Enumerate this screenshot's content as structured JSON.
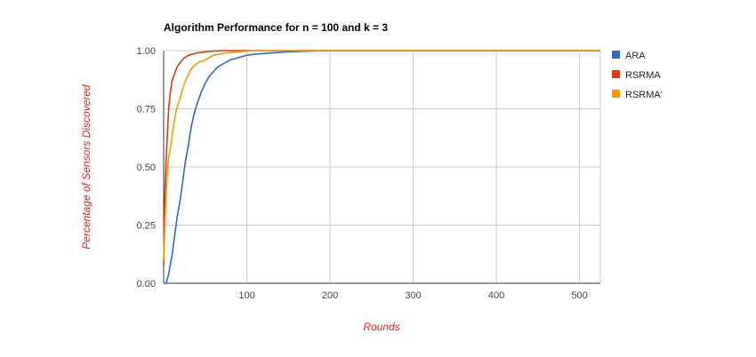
{
  "chart_data": {
    "type": "line",
    "title": "Algorithm Performance for n = 100 and k = 3",
    "xlabel": "Rounds",
    "ylabel": "Percentage of Sensors Discovered",
    "xlim": [
      0,
      525
    ],
    "ylim": [
      0,
      1
    ],
    "x_ticks": [
      "100",
      "200",
      "300",
      "400",
      "500"
    ],
    "y_ticks": [
      "0.00",
      "0.25",
      "0.50",
      "0.75",
      "1.00"
    ],
    "grid": true,
    "legend_position": "right",
    "series": [
      {
        "name": "ARA",
        "color": "#3366cc",
        "points": [
          [
            0,
            0
          ],
          [
            3,
            0
          ],
          [
            6,
            0.04
          ],
          [
            10,
            0.12
          ],
          [
            13,
            0.2
          ],
          [
            16,
            0.28
          ],
          [
            20,
            0.36
          ],
          [
            23,
            0.44
          ],
          [
            26,
            0.52
          ],
          [
            30,
            0.6
          ],
          [
            33,
            0.67
          ],
          [
            36,
            0.72
          ],
          [
            40,
            0.77
          ],
          [
            45,
            0.82
          ],
          [
            50,
            0.86
          ],
          [
            55,
            0.89
          ],
          [
            60,
            0.91
          ],
          [
            65,
            0.93
          ],
          [
            70,
            0.94
          ],
          [
            75,
            0.95
          ],
          [
            80,
            0.96
          ],
          [
            90,
            0.97
          ],
          [
            100,
            0.98
          ],
          [
            110,
            0.985
          ],
          [
            130,
            0.99
          ],
          [
            150,
            0.995
          ],
          [
            180,
            0.998
          ],
          [
            205,
            1.0
          ],
          [
            525,
            1.0
          ]
        ]
      },
      {
        "name": "RSRMA",
        "color": "#dc3912",
        "points": [
          [
            0,
            0.08
          ],
          [
            1,
            0.3
          ],
          [
            2,
            0.45
          ],
          [
            4,
            0.6
          ],
          [
            6,
            0.75
          ],
          [
            8,
            0.82
          ],
          [
            10,
            0.87
          ],
          [
            13,
            0.9
          ],
          [
            16,
            0.93
          ],
          [
            20,
            0.95
          ],
          [
            25,
            0.97
          ],
          [
            30,
            0.98
          ],
          [
            40,
            0.99
          ],
          [
            55,
            0.997
          ],
          [
            70,
            1.0
          ],
          [
            525,
            1.0
          ]
        ]
      },
      {
        "name": "RSRMA'",
        "color": "#ff9900",
        "points": [
          [
            0,
            0.1
          ],
          [
            2,
            0.3
          ],
          [
            4,
            0.45
          ],
          [
            6,
            0.54
          ],
          [
            9,
            0.6
          ],
          [
            12,
            0.68
          ],
          [
            15,
            0.74
          ],
          [
            20,
            0.8
          ],
          [
            25,
            0.86
          ],
          [
            30,
            0.9
          ],
          [
            35,
            0.93
          ],
          [
            42,
            0.95
          ],
          [
            50,
            0.96
          ],
          [
            60,
            0.98
          ],
          [
            75,
            0.99
          ],
          [
            90,
            0.995
          ],
          [
            110,
            1.0
          ],
          [
            525,
            1.0
          ]
        ]
      }
    ]
  }
}
